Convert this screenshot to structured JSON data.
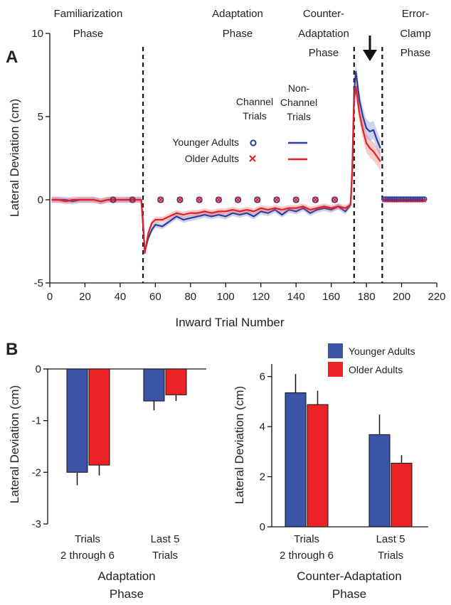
{
  "panel_labels": [
    "A",
    "B"
  ],
  "legend": {
    "channel_header": [
      "Channel",
      "Trials"
    ],
    "nonchannel_header": [
      "Non-",
      "Channel",
      "Trials"
    ],
    "younger_label": "Younger Adults",
    "older_label": "Older Adults"
  },
  "phases": [
    [
      "Familiarization",
      "Phase"
    ],
    [
      "Adaptation",
      "Phase"
    ],
    [
      "Counter-",
      "Adaptation",
      "Phase"
    ],
    [
      "Error-",
      "Clamp",
      "Phase"
    ]
  ],
  "colors": {
    "younger": "#2e3d9c",
    "older": "#e32026",
    "younger_bar": "#3b54a8",
    "older_bar": "#ec2227"
  },
  "chart_data": [
    {
      "type": "line",
      "panel": "A",
      "xlabel": "Inward Trial Number",
      "ylabel": "Lateral Deviation (cm)",
      "xlim": [
        0,
        220
      ],
      "ylim": [
        -5,
        10
      ],
      "xticks": [
        0,
        20,
        40,
        60,
        80,
        100,
        120,
        140,
        160,
        180,
        200,
        220
      ],
      "yticks": [
        -5,
        0,
        5,
        10
      ],
      "phase_boundaries": [
        53,
        173,
        189
      ],
      "series": [
        {
          "name": "Younger Adults",
          "marker": "channel trials: circles; non-channel trials: line",
          "x": [
            1,
            5,
            9,
            13,
            17,
            21,
            25,
            29,
            33,
            37,
            41,
            45,
            49,
            52,
            53,
            54,
            56,
            58,
            60,
            64,
            68,
            72,
            76,
            80,
            84,
            88,
            92,
            96,
            100,
            104,
            108,
            112,
            116,
            120,
            124,
            128,
            132,
            136,
            140,
            144,
            148,
            152,
            156,
            160,
            164,
            168,
            171,
            172,
            173,
            174,
            176,
            178,
            180,
            182,
            184,
            186,
            188
          ],
          "y": [
            0,
            0,
            0,
            -0.1,
            0,
            0,
            0,
            -0.1,
            0,
            0,
            0,
            0,
            0,
            0,
            -1.5,
            -3.1,
            -2.3,
            -1.8,
            -1.5,
            -1.6,
            -1.3,
            -1.0,
            -1.2,
            -1.1,
            -1.0,
            -0.9,
            -1.0,
            -0.9,
            -1.0,
            -0.8,
            -0.9,
            -0.8,
            -1.0,
            -0.7,
            -0.8,
            -0.6,
            -0.9,
            -0.6,
            -0.7,
            -0.5,
            -0.8,
            -0.6,
            -0.5,
            -0.6,
            -0.4,
            -0.7,
            -0.3,
            2.0,
            6.5,
            7.7,
            6.0,
            5.0,
            4.3,
            4.1,
            4.2,
            3.6,
            3.1
          ],
          "channel_x": [
            36,
            47,
            63,
            74,
            85,
            96,
            107,
            118,
            129,
            140,
            151,
            162
          ],
          "channel_y": [
            0,
            0,
            0,
            0,
            0,
            0,
            0,
            0,
            0,
            0,
            0,
            0
          ]
        },
        {
          "name": "Older Adults",
          "marker": "channel trials: crosses; non-channel trials: line",
          "x": [
            1,
            5,
            9,
            13,
            17,
            21,
            25,
            29,
            33,
            37,
            41,
            45,
            49,
            52,
            53,
            54,
            56,
            58,
            60,
            64,
            68,
            72,
            76,
            80,
            84,
            88,
            92,
            96,
            100,
            104,
            108,
            112,
            116,
            120,
            124,
            128,
            132,
            136,
            140,
            144,
            148,
            152,
            156,
            160,
            164,
            168,
            171,
            172,
            173,
            174,
            176,
            178,
            180,
            182,
            184,
            186,
            188
          ],
          "y": [
            0,
            0,
            -0.1,
            0,
            0,
            0,
            0,
            -0.1,
            0,
            0,
            0,
            0,
            0,
            0,
            -1.3,
            -3.2,
            -2.0,
            -1.4,
            -1.2,
            -1.2,
            -1.0,
            -0.8,
            -0.9,
            -0.8,
            -0.8,
            -0.7,
            -0.8,
            -0.7,
            -0.7,
            -0.6,
            -0.7,
            -0.6,
            -0.7,
            -0.5,
            -0.6,
            -0.5,
            -0.6,
            -0.5,
            -0.5,
            -0.4,
            -0.6,
            -0.5,
            -0.4,
            -0.5,
            -0.4,
            -0.5,
            -0.3,
            1.8,
            6.0,
            6.8,
            5.2,
            4.2,
            3.4,
            3.1,
            2.9,
            2.6,
            2.3
          ],
          "channel_x": [
            36,
            47,
            63,
            74,
            85,
            96,
            107,
            118,
            129,
            140,
            151,
            162
          ],
          "channel_y": [
            0,
            0,
            0,
            0,
            0,
            0,
            0,
            0,
            0,
            0,
            0,
            0
          ]
        }
      ],
      "error_clamp_x": [
        190,
        213
      ],
      "error_clamp_y": 0
    },
    {
      "type": "bar",
      "panel": "B-left",
      "categories": [
        [
          "Trials",
          "2 through 6"
        ],
        [
          "Last 5",
          "Trials"
        ]
      ],
      "xlabel": [
        "Adaptation",
        "Phase"
      ],
      "ylabel": "Lateral Deviation (cm)",
      "ylim": [
        -3,
        0
      ],
      "yticks": [
        0,
        -1,
        -2,
        -3
      ],
      "series": [
        {
          "name": "Younger Adults",
          "values": [
            -2.0,
            -0.62
          ],
          "errors": [
            0.25,
            0.18
          ]
        },
        {
          "name": "Older Adults",
          "values": [
            -1.86,
            -0.5
          ],
          "errors": [
            0.2,
            0.12
          ]
        }
      ]
    },
    {
      "type": "bar",
      "panel": "B-right",
      "categories": [
        [
          "Trials",
          "2 through 6"
        ],
        [
          "Last 5",
          "Trials"
        ]
      ],
      "xlabel": [
        "Counter-Adaptation",
        "Phase"
      ],
      "ylabel": "Lateral Deviation (cm)",
      "ylim": [
        0,
        6.5
      ],
      "yticks": [
        0,
        2,
        4,
        6
      ],
      "series": [
        {
          "name": "Younger Adults",
          "values": [
            5.35,
            3.68
          ],
          "errors": [
            0.75,
            0.8
          ]
        },
        {
          "name": "Older Adults",
          "values": [
            4.88,
            2.54
          ],
          "errors": [
            0.55,
            0.32
          ]
        }
      ]
    }
  ]
}
